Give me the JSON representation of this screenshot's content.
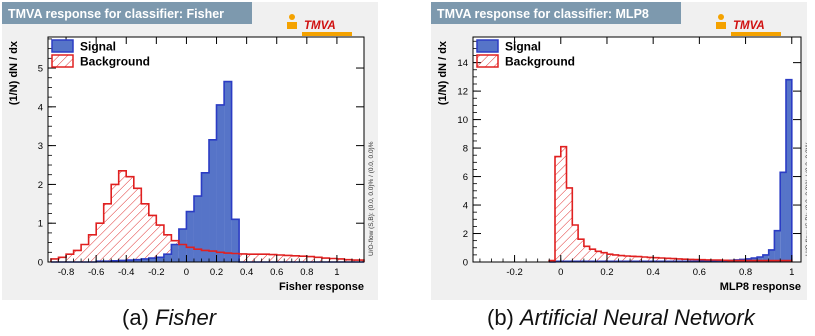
{
  "chart_data": [
    {
      "type": "area",
      "title": "TMVA response for classifier: Fisher",
      "logo": "TMVA",
      "xlabel": "Fisher response",
      "ylabel": "(1/N) dN / dx",
      "overflow_note": "U/O-flow (S,B): (0.0, 0.0)% / (0.0, 0.0)%",
      "xlim": [
        -0.92,
        1.18
      ],
      "ylim": [
        0,
        5.8
      ],
      "xticks": [
        "-0.8",
        "-0.6",
        "-0.4",
        "-0.2",
        "0",
        "0.2",
        "0.4",
        "0.6",
        "0.8",
        "1"
      ],
      "xtick_values": [
        -0.8,
        -0.6,
        -0.4,
        -0.2,
        0,
        0.2,
        0.4,
        0.6,
        0.8,
        1
      ],
      "yticks": [
        "0",
        "1",
        "2",
        "3",
        "4",
        "5"
      ],
      "ytick_values": [
        0,
        1,
        2,
        3,
        4,
        5
      ],
      "legend_position": "top-left",
      "bin_edges_start": -0.9,
      "bin_width": 0.05,
      "series": [
        {
          "name": "Signal",
          "style": "filled",
          "color": "#2b3cc4",
          "fill": "#5674c8",
          "values": [
            0.0,
            0.0,
            0.0,
            0.0,
            0.0,
            0.0,
            0.02,
            0.02,
            0.03,
            0.04,
            0.05,
            0.06,
            0.08,
            0.1,
            0.12,
            0.2,
            0.45,
            0.85,
            1.3,
            1.7,
            2.3,
            3.15,
            4.05,
            4.65,
            1.1,
            0.0,
            0.0,
            0.0,
            0.0,
            0.0,
            0.0,
            0.0,
            0.0,
            0.0,
            0.0,
            0.0,
            0.0,
            0.0,
            0.0,
            0.0,
            0.0,
            0.0
          ]
        },
        {
          "name": "Background",
          "style": "hatched",
          "color": "#e02020",
          "fill": "#e02020",
          "values": [
            0.08,
            0.12,
            0.2,
            0.3,
            0.45,
            0.7,
            1.0,
            1.5,
            2.0,
            2.35,
            2.2,
            1.9,
            1.5,
            1.2,
            0.95,
            0.7,
            0.55,
            0.45,
            0.38,
            0.33,
            0.3,
            0.28,
            0.25,
            0.23,
            0.22,
            0.21,
            0.2,
            0.2,
            0.2,
            0.19,
            0.18,
            0.17,
            0.16,
            0.15,
            0.14,
            0.12,
            0.1,
            0.09,
            0.08,
            0.06,
            0.05,
            0.05
          ]
        }
      ]
    },
    {
      "type": "area",
      "title": "TMVA response for classifier: MLP8",
      "logo": "TMVA",
      "xlabel": "MLP8 response",
      "ylabel": "(1/N) dN / dx",
      "overflow_note": "U/O-flow (S,B): (0.0, 0.0)% / (0.0, 0.0)%",
      "xlim": [
        -0.38,
        1.04
      ],
      "ylim": [
        0,
        15.8
      ],
      "xticks": [
        "-0.2",
        "0",
        "0.2",
        "0.4",
        "0.6",
        "0.8",
        "1"
      ],
      "xtick_values": [
        -0.2,
        0,
        0.2,
        0.4,
        0.6,
        0.8,
        1
      ],
      "yticks": [
        "0",
        "2",
        "4",
        "6",
        "8",
        "10",
        "12",
        "14"
      ],
      "ytick_values": [
        0,
        2,
        4,
        6,
        8,
        10,
        12,
        14
      ],
      "legend_position": "top-left",
      "bin_edges_start": -0.05,
      "bin_width": 0.025,
      "series": [
        {
          "name": "Signal",
          "style": "filled",
          "color": "#2b3cc4",
          "fill": "#5674c8",
          "values": [
            0.0,
            0.05,
            0.05,
            0.05,
            0.05,
            0.05,
            0.05,
            0.05,
            0.05,
            0.05,
            0.05,
            0.05,
            0.05,
            0.05,
            0.05,
            0.05,
            0.05,
            0.05,
            0.05,
            0.05,
            0.05,
            0.05,
            0.05,
            0.05,
            0.05,
            0.05,
            0.08,
            0.08,
            0.08,
            0.1,
            0.1,
            0.12,
            0.15,
            0.18,
            0.22,
            0.28,
            0.35,
            0.5,
            0.85,
            2.2,
            6.3,
            12.8
          ]
        },
        {
          "name": "Background",
          "style": "hatched",
          "color": "#e02020",
          "fill": "#e02020",
          "values": [
            0.1,
            7.4,
            8.1,
            5.2,
            2.6,
            1.6,
            1.1,
            0.9,
            0.75,
            0.65,
            0.55,
            0.5,
            0.45,
            0.42,
            0.4,
            0.38,
            0.35,
            0.32,
            0.3,
            0.28,
            0.26,
            0.24,
            0.22,
            0.2,
            0.18,
            0.17,
            0.16,
            0.15,
            0.14,
            0.13,
            0.12,
            0.1,
            0.1,
            0.1,
            0.1,
            0.1,
            0.1,
            0.1,
            0.1,
            0.1,
            0.1,
            0.1
          ]
        }
      ]
    }
  ],
  "captions": {
    "a_prefix": "(a) ",
    "a_italic": "Fisher",
    "b_prefix": "(b) ",
    "b_italic": "Artificial Neural Network"
  }
}
